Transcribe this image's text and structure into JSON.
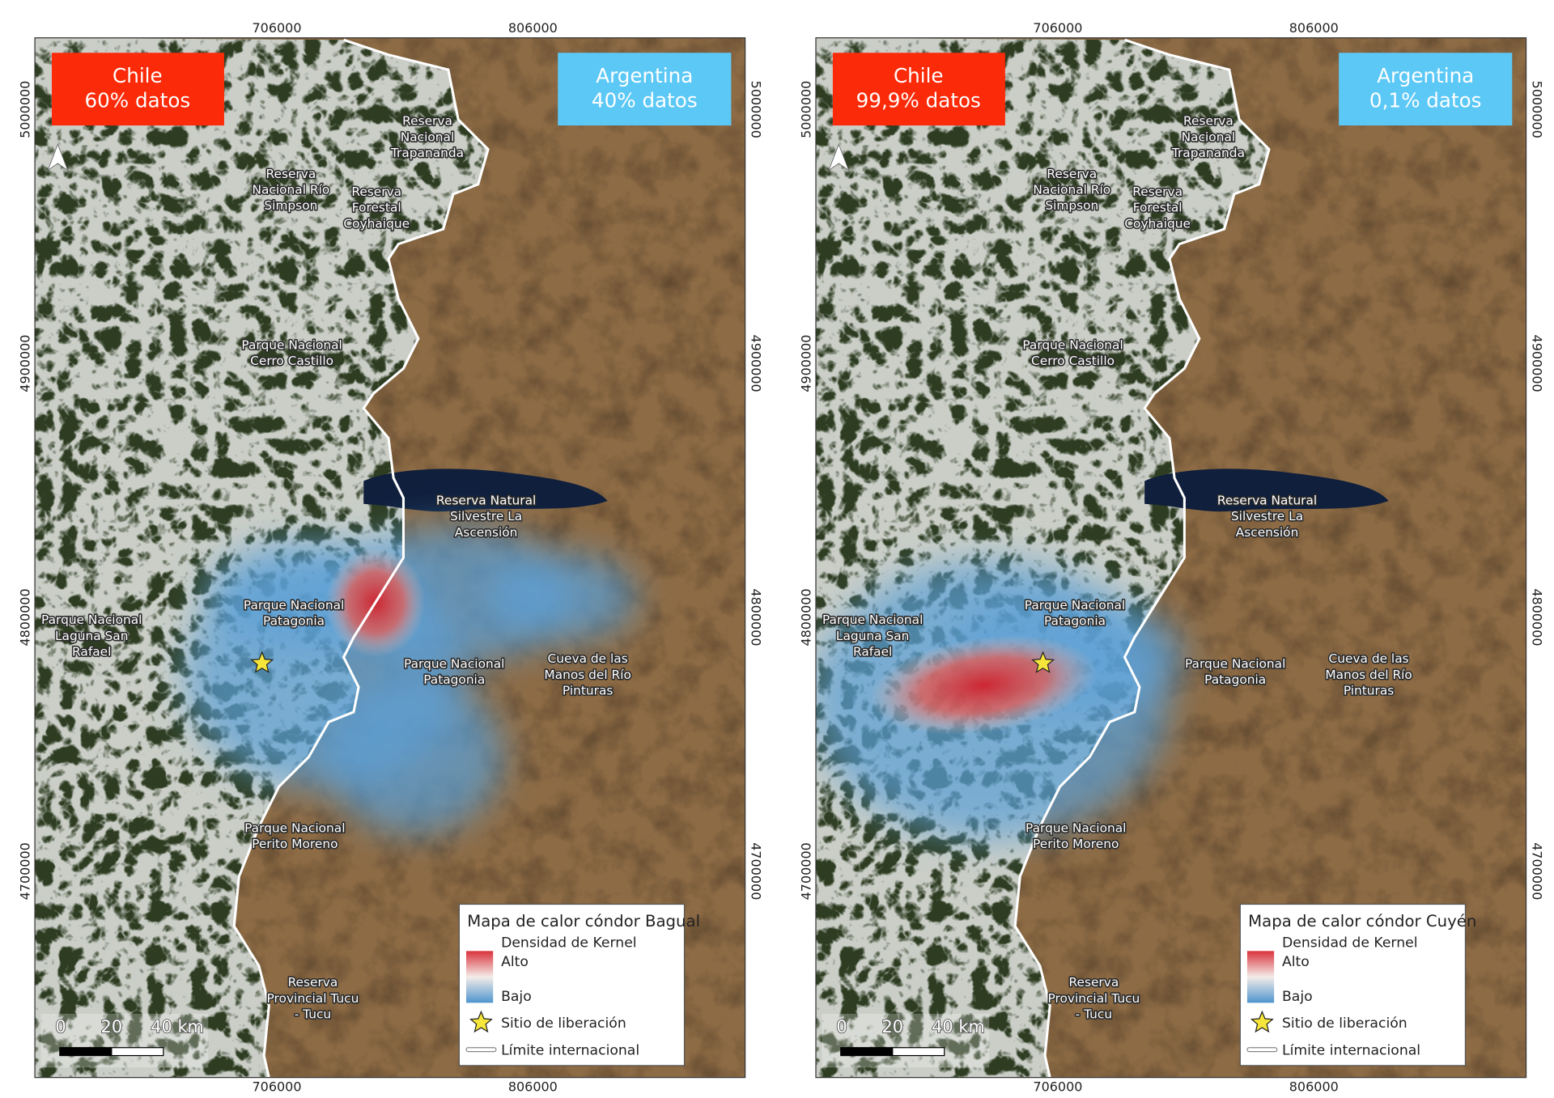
{
  "maps": [
    {
      "chile": {
        "name": "Chile",
        "share": "60% datos"
      },
      "argentina": {
        "name": "Argentina",
        "share": "40% datos"
      },
      "legend_title": "Mapa de calor cóndor Bagual"
    },
    {
      "chile": {
        "name": "Chile",
        "share": "99,9% datos"
      },
      "argentina": {
        "name": "Argentina",
        "share": "0,1% datos"
      },
      "legend_title": "Mapa de calor cóndor Cuyén"
    }
  ],
  "grid": {
    "xlim": [
      611500,
      888900
    ],
    "ylim": [
      4618800,
      5028200
    ],
    "xticks": [
      706000,
      806000
    ],
    "yticks": [
      5000000,
      4900000,
      4800000,
      4700000
    ]
  },
  "legend": {
    "subtitle": "Densidad de Kernel",
    "high": "Alto",
    "low": "Bajo",
    "release": "Sitio de liberación",
    "border": "Límite internacional"
  },
  "scale_bar": [
    "0",
    "20",
    "40 km"
  ],
  "places": [
    {
      "lines": [
        "Reserva",
        "Nacional",
        "Trapananda"
      ]
    },
    {
      "lines": [
        "Reserva",
        "Nacional Río",
        "Simpson"
      ]
    },
    {
      "lines": [
        "Reserva",
        "Forestal",
        "Coyhaique"
      ]
    },
    {
      "lines": [
        "Parque Nacional",
        "Cerro Castillo"
      ]
    },
    {
      "lines": [
        "Reserva Natural",
        "Silvestre La",
        "Ascensión"
      ]
    },
    {
      "lines": [
        "Parque Nacional",
        "Patagonia"
      ]
    },
    {
      "lines": [
        "Parque Nacional",
        "Laguna San",
        "Rafael"
      ]
    },
    {
      "lines": [
        "Parque Nacional",
        "Patagonia"
      ]
    },
    {
      "lines": [
        "Cueva de las",
        "Manos del Río",
        "Pinturas"
      ]
    },
    {
      "lines": [
        "Parque Nacional",
        "Perito Moreno"
      ]
    },
    {
      "lines": [
        "Reserva",
        "Provincial Tucu",
        "- Tucu"
      ]
    }
  ]
}
